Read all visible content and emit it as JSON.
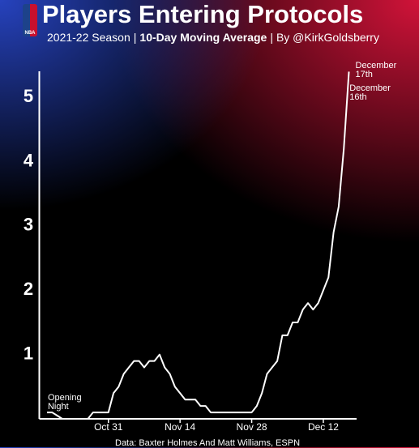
{
  "chart_data": {
    "type": "line",
    "title": "Players Entering Protocols",
    "subtitle": [
      "2021-22 Season",
      "|",
      "10-Day Moving Average",
      "|",
      "By @KirkGoldsberry"
    ],
    "logo_text": "NBA",
    "source": "Data: Baxter Holmes And Matt Williams, ESPN",
    "annotations": [
      "Opening Night",
      "December 16th",
      "December 17th"
    ],
    "x": [
      0,
      1,
      2,
      3,
      4,
      5,
      6,
      7,
      8,
      9,
      10,
      11,
      12,
      13,
      14,
      15,
      16,
      17,
      18,
      19,
      20,
      21,
      22,
      23,
      24,
      25,
      26,
      27,
      28,
      29,
      30,
      31,
      32,
      33,
      34,
      35,
      36,
      37,
      38,
      39,
      40,
      41,
      42,
      43,
      44,
      45,
      46,
      47,
      48,
      49,
      50,
      51,
      52,
      53,
      54,
      55,
      56,
      57,
      58,
      59
    ],
    "series": [
      {
        "color": "#ffffff",
        "values": [
          0.1,
          0.1,
          0.05,
          0,
          0,
          0,
          0,
          0,
          0,
          0.1,
          0.1,
          0.1,
          0.1,
          0.4,
          0.5,
          0.7,
          0.8,
          0.9,
          0.9,
          0.8,
          0.9,
          0.9,
          1.0,
          0.8,
          0.7,
          0.5,
          0.4,
          0.3,
          0.3,
          0.3,
          0.2,
          0.2,
          0.1,
          0.1,
          0.1,
          0.1,
          0.1,
          0.1,
          0.1,
          0.1,
          0.1,
          0.2,
          0.4,
          0.7,
          0.8,
          0.9,
          1.3,
          1.3,
          1.5,
          1.5,
          1.7,
          1.8,
          1.7,
          1.8,
          2.0,
          2.2,
          2.9,
          3.3,
          4.2,
          5.4
        ]
      }
    ],
    "xlim": [
      -1.5,
      60.5
    ],
    "xticks": [
      {
        "value": 12,
        "label": "Oct 31"
      },
      {
        "value": 26,
        "label": "Nov 14"
      },
      {
        "value": 40,
        "label": "Nov 28"
      },
      {
        "value": 54,
        "label": "Dec 12"
      }
    ],
    "ylim": [
      0,
      5.5
    ],
    "yticks": [
      1,
      2,
      3,
      4,
      5
    ],
    "grid": false
  }
}
